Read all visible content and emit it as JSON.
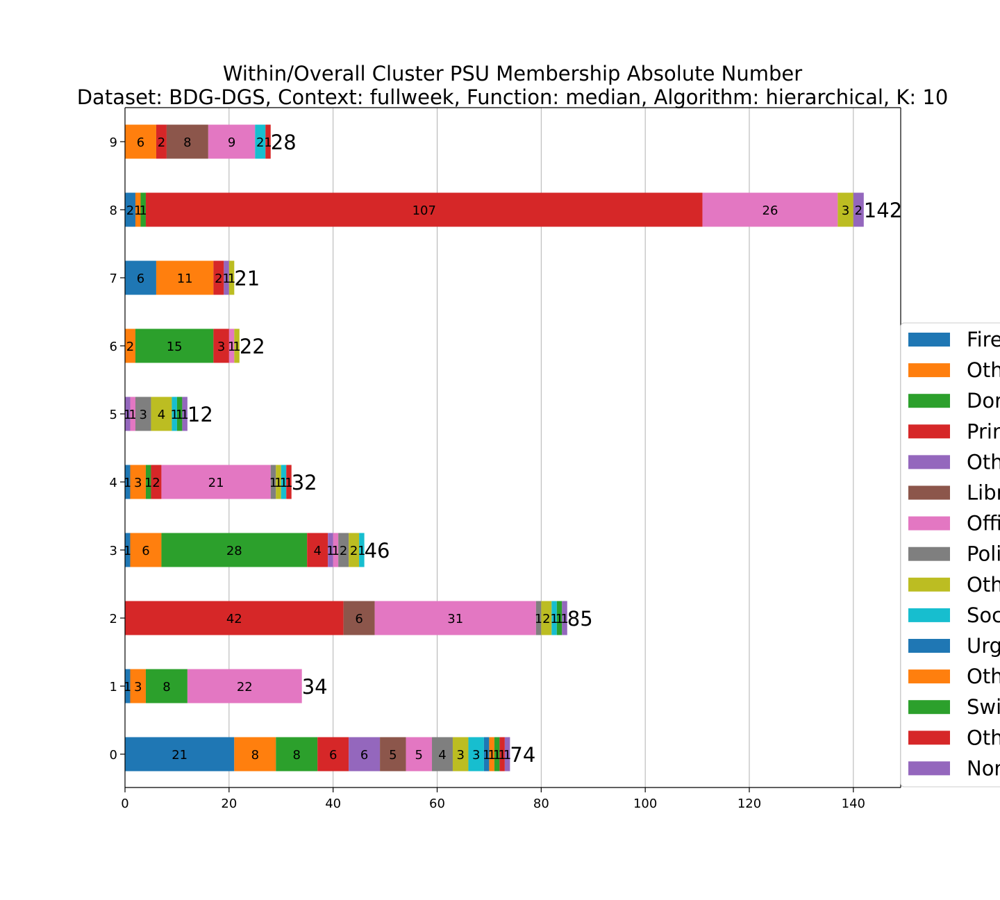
{
  "chart_data": {
    "type": "bar",
    "orientation": "horizontal",
    "stacked": true,
    "title": "Within/Overall Cluster PSU Membership Absolute Number",
    "subtitle": "Dataset: BDG-DGS, Context: fullweek, Function: median, Algorithm: hierarchical, K: 10",
    "xlabel": "",
    "ylabel": "",
    "xlim": [
      0,
      149.1
    ],
    "xticks": [
      0,
      20,
      40,
      60,
      80,
      100,
      120,
      140
    ],
    "grid": "vertical",
    "legend_position": "right",
    "categories": [
      "0",
      "1",
      "2",
      "3",
      "4",
      "5",
      "6",
      "7",
      "8",
      "9"
    ],
    "totals": [
      74,
      34,
      85,
      46,
      32,
      12,
      22,
      21,
      142,
      28
    ],
    "rows": [
      {
        "category": "0",
        "segments": [
          {
            "value": 21,
            "color": "#1f77b4"
          },
          {
            "value": 8,
            "color": "#ff7f0e"
          },
          {
            "value": 8,
            "color": "#2ca02c"
          },
          {
            "value": 6,
            "color": "#d62728"
          },
          {
            "value": 6,
            "color": "#9467bd"
          },
          {
            "value": 5,
            "color": "#8c564b"
          },
          {
            "value": 5,
            "color": "#e377c2"
          },
          {
            "value": 4,
            "color": "#7f7f7f"
          },
          {
            "value": 3,
            "color": "#bcbd22"
          },
          {
            "value": 3,
            "color": "#17becf"
          },
          {
            "value": 1,
            "color": "#1f77b4"
          },
          {
            "value": 1,
            "color": "#ff7f0e"
          },
          {
            "value": 1,
            "color": "#2ca02c"
          },
          {
            "value": 1,
            "color": "#d62728"
          },
          {
            "value": 1,
            "color": "#9467bd"
          }
        ]
      },
      {
        "category": "1",
        "segments": [
          {
            "value": 1,
            "color": "#1f77b4"
          },
          {
            "value": 3,
            "color": "#ff7f0e"
          },
          {
            "value": 8,
            "color": "#2ca02c"
          },
          {
            "value": 22,
            "color": "#e377c2"
          }
        ]
      },
      {
        "category": "2",
        "segments": [
          {
            "value": 42,
            "color": "#d62728"
          },
          {
            "value": 6,
            "color": "#8c564b"
          },
          {
            "value": 31,
            "color": "#e377c2"
          },
          {
            "value": 1,
            "color": "#7f7f7f"
          },
          {
            "value": 2,
            "color": "#bcbd22"
          },
          {
            "value": 1,
            "color": "#17becf"
          },
          {
            "value": 1,
            "color": "#2ca02c"
          },
          {
            "value": 1,
            "color": "#9467bd"
          }
        ]
      },
      {
        "category": "3",
        "segments": [
          {
            "value": 1,
            "color": "#1f77b4"
          },
          {
            "value": 6,
            "color": "#ff7f0e"
          },
          {
            "value": 28,
            "color": "#2ca02c"
          },
          {
            "value": 4,
            "color": "#d62728"
          },
          {
            "value": 1,
            "color": "#9467bd"
          },
          {
            "value": 1,
            "color": "#e377c2"
          },
          {
            "value": 2,
            "color": "#7f7f7f"
          },
          {
            "value": 2,
            "color": "#bcbd22"
          },
          {
            "value": 1,
            "color": "#17becf"
          }
        ]
      },
      {
        "category": "4",
        "segments": [
          {
            "value": 1,
            "color": "#1f77b4"
          },
          {
            "value": 3,
            "color": "#ff7f0e"
          },
          {
            "value": 1,
            "color": "#2ca02c"
          },
          {
            "value": 2,
            "color": "#d62728"
          },
          {
            "value": 21,
            "color": "#e377c2"
          },
          {
            "value": 1,
            "color": "#7f7f7f"
          },
          {
            "value": 1,
            "color": "#bcbd22"
          },
          {
            "value": 1,
            "color": "#17becf"
          },
          {
            "value": 1,
            "color": "#d62728"
          }
        ]
      },
      {
        "category": "5",
        "segments": [
          {
            "value": 1,
            "color": "#9467bd"
          },
          {
            "value": 1,
            "color": "#e377c2"
          },
          {
            "value": 3,
            "color": "#7f7f7f"
          },
          {
            "value": 4,
            "color": "#bcbd22"
          },
          {
            "value": 1,
            "color": "#17becf"
          },
          {
            "value": 1,
            "color": "#2ca02c"
          },
          {
            "value": 1,
            "color": "#9467bd"
          }
        ]
      },
      {
        "category": "6",
        "segments": [
          {
            "value": 2,
            "color": "#ff7f0e"
          },
          {
            "value": 15,
            "color": "#2ca02c"
          },
          {
            "value": 3,
            "color": "#d62728"
          },
          {
            "value": 1,
            "color": "#e377c2"
          },
          {
            "value": 1,
            "color": "#bcbd22"
          }
        ]
      },
      {
        "category": "7",
        "segments": [
          {
            "value": 6,
            "color": "#1f77b4"
          },
          {
            "value": 11,
            "color": "#ff7f0e"
          },
          {
            "value": 2,
            "color": "#d62728"
          },
          {
            "value": 1,
            "color": "#9467bd"
          },
          {
            "value": 1,
            "color": "#bcbd22"
          }
        ]
      },
      {
        "category": "8",
        "segments": [
          {
            "value": 2,
            "color": "#1f77b4"
          },
          {
            "value": 1,
            "color": "#ff7f0e"
          },
          {
            "value": 1,
            "color": "#2ca02c"
          },
          {
            "value": 107,
            "color": "#d62728"
          },
          {
            "value": 26,
            "color": "#e377c2"
          },
          {
            "value": 3,
            "color": "#bcbd22"
          },
          {
            "value": 2,
            "color": "#9467bd"
          }
        ]
      },
      {
        "category": "9",
        "segments": [
          {
            "value": 6,
            "color": "#ff7f0e"
          },
          {
            "value": 2,
            "color": "#d62728"
          },
          {
            "value": 8,
            "color": "#8c564b"
          },
          {
            "value": 9,
            "color": "#e377c2"
          },
          {
            "value": 2,
            "color": "#17becf"
          },
          {
            "value": 1,
            "color": "#d62728"
          }
        ]
      }
    ],
    "legend": [
      {
        "label": "Fire",
        "color": "#1f77b4"
      },
      {
        "label": "Oth",
        "color": "#ff7f0e"
      },
      {
        "label": "Dor",
        "color": "#2ca02c"
      },
      {
        "label": "Prin",
        "color": "#d62728"
      },
      {
        "label": "Oth",
        "color": "#9467bd"
      },
      {
        "label": "Libr",
        "color": "#8c564b"
      },
      {
        "label": "Offi",
        "color": "#e377c2"
      },
      {
        "label": "Poli",
        "color": "#7f7f7f"
      },
      {
        "label": "Oth",
        "color": "#bcbd22"
      },
      {
        "label": "Soc",
        "color": "#17becf"
      },
      {
        "label": "Urg",
        "color": "#1f77b4"
      },
      {
        "label": "Oth",
        "color": "#ff7f0e"
      },
      {
        "label": "Swi",
        "color": "#2ca02c"
      },
      {
        "label": "Oth",
        "color": "#d62728"
      },
      {
        "label": "Nor",
        "color": "#9467bd"
      }
    ]
  }
}
